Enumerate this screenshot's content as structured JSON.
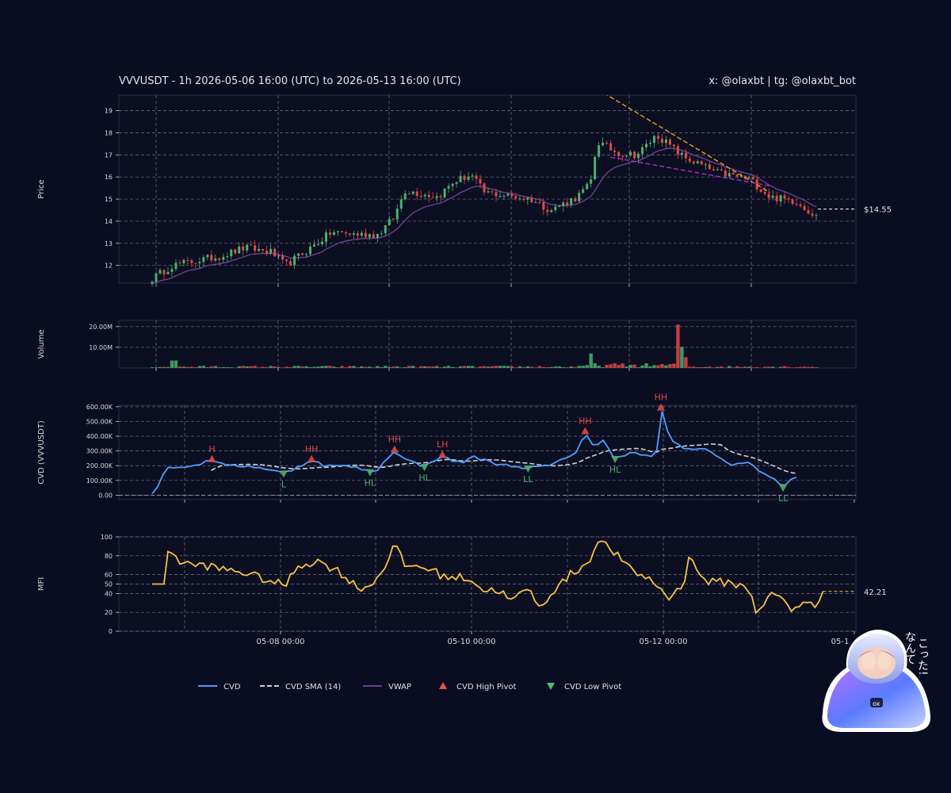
{
  "header": {
    "title": "VVVUSDT - 1h 2026-05-06 16:00 (UTC) to 2026-05-13 16:00 (UTC)",
    "credit": "x: @olaxbt | tg: @olaxbt_bot"
  },
  "legend": {
    "items": [
      {
        "label": "CVD",
        "color": "#4a9fff",
        "style": "solid"
      },
      {
        "label": "CVD SMA (14)",
        "color": "#d0d0d0",
        "style": "dashed"
      },
      {
        "label": "VWAP",
        "color": "#6a3f8f",
        "style": "solid"
      },
      {
        "label": "CVD High Pivot",
        "color": "#e84d4d",
        "style": "triangle-up"
      },
      {
        "label": "CVD Low Pivot",
        "color": "#4cbf68",
        "style": "triangle-down"
      }
    ]
  },
  "colors": {
    "background": "#0a0c22",
    "up": "#4caf6d",
    "down": "#e04848",
    "cvd": "#4a9fff",
    "sma": "#d0d0d0",
    "vwap": "#6a3f8f",
    "mfi": "#f5c242",
    "trend_orange": "#f0a020",
    "trend_purple": "#a030c0",
    "grid": "#6b6b7a"
  },
  "sticker": {
    "text_right": "こった!",
    "text_left": "なんて",
    "badge": "ox"
  },
  "chart_data": [
    {
      "type": "candlestick",
      "panel": "price",
      "ylabel": "Price",
      "ylim": [
        11.2,
        19.7
      ],
      "yticks": [
        12,
        13,
        14,
        15,
        16,
        17,
        18,
        19
      ],
      "last_price_label": "$14.55",
      "last_price": 14.55,
      "x_range": [
        "2026-05-06 16:00",
        "2026-05-13 16:00"
      ],
      "legend_placement": "bottom",
      "grid": true,
      "trendlines": [
        {
          "name": "resistance",
          "color": "orange",
          "points": [
            [
              0.68,
              19.8
            ],
            [
              0.93,
              15.3
            ]
          ]
        },
        {
          "name": "support",
          "color": "purple",
          "points": [
            [
              0.69,
              16.9
            ],
            [
              0.93,
              15.6
            ]
          ]
        }
      ]
    },
    {
      "type": "bar",
      "panel": "volume",
      "ylabel": "Volume",
      "yticks": [
        10000000,
        20000000
      ],
      "ytick_labels": [
        "10.00M",
        "20.00M"
      ],
      "ylim": [
        0,
        23000000
      ],
      "peak_value": 21000000
    },
    {
      "type": "line",
      "panel": "cvd",
      "ylabel": "CVD (VVVUSDT)",
      "ylim": [
        -30000,
        610000
      ],
      "yticks": [
        0,
        100000,
        200000,
        300000,
        400000,
        500000,
        600000
      ],
      "ytick_labels": [
        "0.00",
        "100.00K",
        "200.00K",
        "300.00K",
        "400.00K",
        "500.00K",
        "600.00K"
      ],
      "series": [
        {
          "name": "CVD"
        },
        {
          "name": "CVD SMA (14)"
        }
      ],
      "pivots": [
        {
          "label": "H",
          "kind": "high",
          "t": 0.09,
          "value": 240000
        },
        {
          "label": "L",
          "kind": "low",
          "t": 0.198,
          "value": 150000
        },
        {
          "label": "HH",
          "kind": "high",
          "t": 0.24,
          "value": 240000
        },
        {
          "label": "HL",
          "kind": "low",
          "t": 0.328,
          "value": 160000
        },
        {
          "label": "HH",
          "kind": "high",
          "t": 0.365,
          "value": 305000
        },
        {
          "label": "HL",
          "kind": "low",
          "t": 0.41,
          "value": 195000
        },
        {
          "label": "LH",
          "kind": "high",
          "t": 0.437,
          "value": 270000
        },
        {
          "label": "LL",
          "kind": "low",
          "t": 0.566,
          "value": 185000
        },
        {
          "label": "HH",
          "kind": "high",
          "t": 0.652,
          "value": 430000
        },
        {
          "label": "HL",
          "kind": "low",
          "t": 0.697,
          "value": 250000
        },
        {
          "label": "HH",
          "kind": "high",
          "t": 0.766,
          "value": 590000
        },
        {
          "label": "LL",
          "kind": "low",
          "t": 0.95,
          "value": 55000
        }
      ]
    },
    {
      "type": "line",
      "panel": "mfi",
      "ylabel": "MFI",
      "ylim": [
        0,
        100
      ],
      "yticks": [
        0,
        20,
        40,
        50,
        60,
        80,
        100
      ],
      "last_value_label": "42.21",
      "last_value": 42.21,
      "xticks": [
        "05-08 00:00",
        "05-10 00:00",
        "05-12 00:00",
        "05-1"
      ],
      "series": [
        {
          "name": "MFI"
        }
      ]
    }
  ]
}
